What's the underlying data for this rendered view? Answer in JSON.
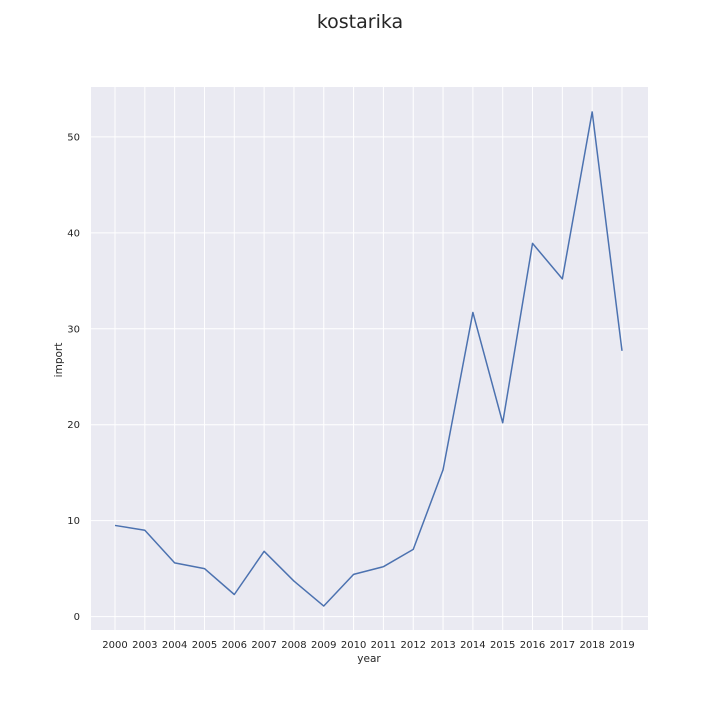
{
  "chart_data": {
    "type": "line",
    "title": "kostarika",
    "xlabel": "year",
    "ylabel": "import",
    "categories": [
      "2000",
      "2003",
      "2004",
      "2005",
      "2006",
      "2007",
      "2008",
      "2009",
      "2010",
      "2011",
      "2012",
      "2013",
      "2014",
      "2015",
      "2016",
      "2017",
      "2018",
      "2019"
    ],
    "series": [
      {
        "name": "import",
        "values": [
          9.5,
          9.0,
          5.6,
          5.0,
          2.3,
          6.8,
          3.7,
          1.1,
          4.4,
          5.2,
          7.0,
          15.3,
          31.7,
          20.2,
          38.9,
          35.2,
          52.6,
          27.7
        ],
        "color": "#4c72b0"
      }
    ],
    "ylim": [
      -1.4,
      55.2
    ],
    "yticks": [
      0,
      10,
      20,
      30,
      40,
      50
    ],
    "grid": true,
    "background": "#eaeaf2",
    "grid_color": "#ffffff"
  }
}
